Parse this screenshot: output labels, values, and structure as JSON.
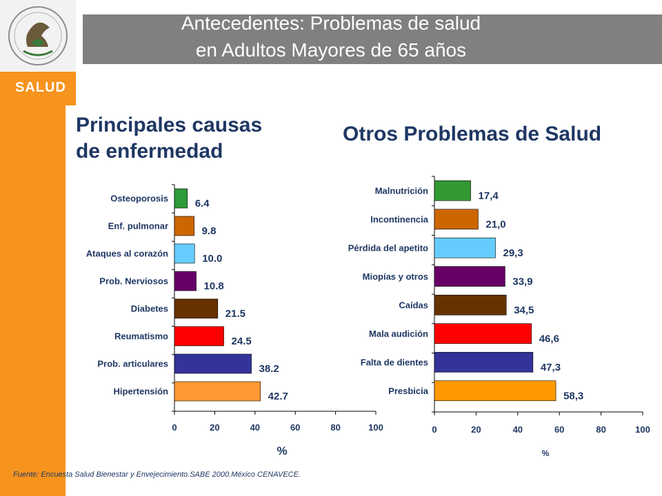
{
  "header": {
    "title_line1": "Antecedentes: Problemas de salud",
    "title_line2": "en Adultos Mayores de 65 años"
  },
  "sidebar": {
    "brand": "SALUD"
  },
  "colors": {
    "sidebar_orange": "#f7941d",
    "title_gray": "#808080",
    "heading_navy": "#1f3763"
  },
  "chart_data": [
    {
      "type": "bar",
      "orientation": "horizontal",
      "title": "Principales causas de enfermedad",
      "title_lines": [
        "Principales causas",
        "de enfermedad"
      ],
      "categories": [
        "Osteoporosis",
        "Enf. pulmonar",
        "Ataques al corazón",
        "Prob. Nerviosos",
        "Diabetes",
        "Reumatismo",
        "Prob. articulares",
        "Hipertensión"
      ],
      "values": [
        6.4,
        9.8,
        10.0,
        10.8,
        21.5,
        24.5,
        38.2,
        42.7
      ],
      "value_labels": [
        "6.4",
        "9.8",
        "10.0",
        "10.8",
        "21.5",
        "24.5",
        "38.2",
        "42.7"
      ],
      "bar_colors": [
        "#2e9b3a",
        "#cc6600",
        "#66ccff",
        "#660066",
        "#663300",
        "#ff0000",
        "#333399",
        "#ff9933"
      ],
      "xlabel": "%",
      "xlim": [
        0,
        100
      ],
      "xticks": [
        "0",
        "20",
        "40",
        "60",
        "80",
        "100"
      ]
    },
    {
      "type": "bar",
      "orientation": "horizontal",
      "title": "Otros Problemas de Salud",
      "categories": [
        "Malnutrición",
        "Incontinencia",
        "Pérdida del apetito",
        "Miopías y otros",
        "Caídas",
        "Mala audición",
        "Falta de dientes",
        "Presbicia"
      ],
      "values": [
        17.4,
        21.0,
        29.3,
        33.9,
        34.5,
        46.6,
        47.3,
        58.3
      ],
      "value_labels": [
        "17,4",
        "21,0",
        "29,3",
        "33,9",
        "34,5",
        "46,6",
        "47,3",
        "58,3"
      ],
      "bar_colors": [
        "#339933",
        "#cc6600",
        "#66ccff",
        "#660066",
        "#663300",
        "#ff0000",
        "#333399",
        "#ff9900"
      ],
      "xlabel": "%",
      "xlim": [
        0,
        100
      ],
      "xticks": [
        "0",
        "20",
        "40",
        "60",
        "80",
        "100"
      ]
    }
  ],
  "footer": {
    "source": "Fuente: Encuesta Salud Bienestar y Envejecimiento.SABE 2000.México CENAVECE."
  }
}
